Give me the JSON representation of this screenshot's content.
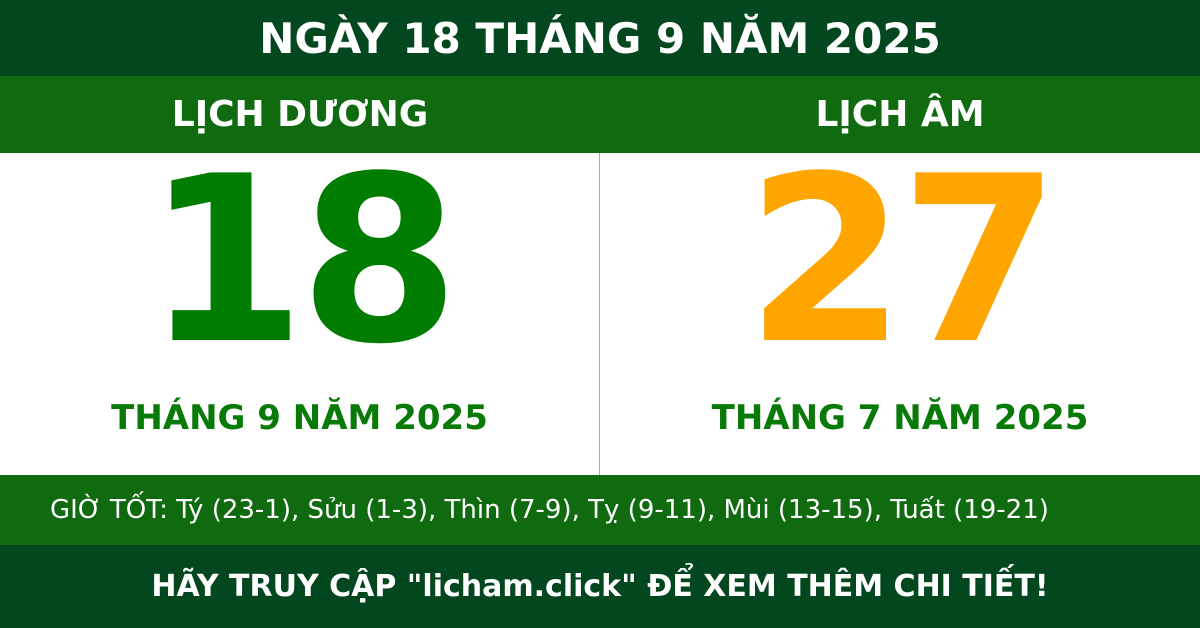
{
  "header": {
    "title": "NGÀY 18 THÁNG 9 NĂM 2025"
  },
  "solar": {
    "label": "LỊCH DƯƠNG",
    "day": "18",
    "month_year": "THÁNG 9 NĂM 2025"
  },
  "lunar": {
    "label": "LỊCH ÂM",
    "day": "27",
    "month_year": "THÁNG 7 NĂM 2025"
  },
  "good_hours": "GIỜ TỐT: Tý (23-1), Sửu (1-3), Thìn (7-9), Tỵ (9-11), Mùi (13-15), Tuất (19-21)",
  "footer": "HÃY TRUY CẬP \"licham.click\" ĐỂ XEM THÊM CHI TIẾT!",
  "colors": {
    "dark_green": "#03471f",
    "green": "#106b10",
    "solar_day": "#007d00",
    "lunar_day": "#ffa500"
  }
}
